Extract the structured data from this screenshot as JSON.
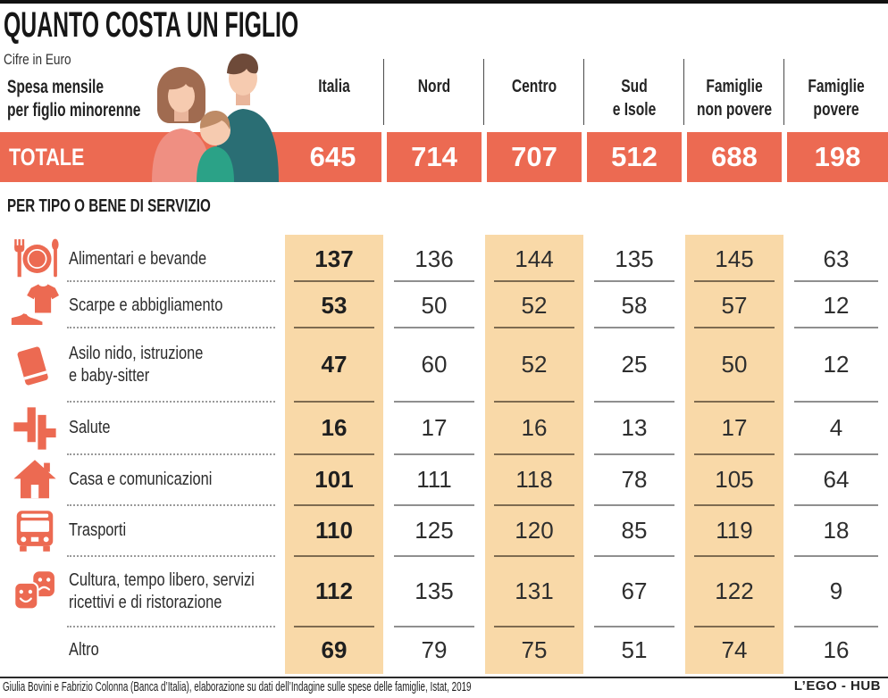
{
  "title": "QUANTO COSTA UN FIGLIO",
  "subtitle": "Cifre in Euro",
  "table": {
    "row_header_lines": [
      "Spesa mensile",
      "per figlio minorenne"
    ],
    "columns": [
      [
        "Italia"
      ],
      [
        "Nord"
      ],
      [
        "Centro"
      ],
      [
        "Sud",
        "e Isole"
      ],
      [
        "Famiglie",
        "non povere"
      ],
      [
        "Famiglie",
        "povere"
      ]
    ]
  },
  "totale": {
    "label": "TOTALE",
    "values": [
      "645",
      "714",
      "707",
      "512",
      "688",
      "198"
    ]
  },
  "section_title": "PER TIPO O BENE DI SERVIZIO",
  "highlight_columns": [
    0,
    2,
    4
  ],
  "rows": [
    {
      "icon": "restaurant-icon",
      "label_lines": [
        "Alimentari e bevande"
      ],
      "values": [
        137,
        136,
        144,
        135,
        145,
        63
      ]
    },
    {
      "icon": "clothing-icon",
      "label_lines": [
        "Scarpe e abbigliamento"
      ],
      "values": [
        53,
        50,
        52,
        58,
        57,
        12
      ]
    },
    {
      "icon": "education-icon",
      "label_lines": [
        "Asilo nido, istruzione",
        "e baby-sitter"
      ],
      "values": [
        47,
        60,
        52,
        25,
        50,
        12
      ]
    },
    {
      "icon": "health-icon",
      "label_lines": [
        "Salute"
      ],
      "values": [
        16,
        17,
        16,
        13,
        17,
        4
      ]
    },
    {
      "icon": "home-icon",
      "label_lines": [
        "Casa e comunicazioni"
      ],
      "values": [
        101,
        111,
        118,
        78,
        105,
        64
      ]
    },
    {
      "icon": "bus-icon",
      "label_lines": [
        "Trasporti"
      ],
      "values": [
        110,
        125,
        120,
        85,
        119,
        18
      ]
    },
    {
      "icon": "theater-masks-icon",
      "label_lines": [
        "Cultura, tempo libero, servizi",
        "ricettivi e di ristorazione"
      ],
      "values": [
        112,
        135,
        131,
        67,
        122,
        9
      ]
    },
    {
      "icon": null,
      "label_lines": [
        "Altro"
      ],
      "values": [
        69,
        79,
        75,
        51,
        74,
        16
      ]
    }
  ],
  "footer": {
    "source": "Giulia Bovini e Fabrizio Colonna (Banca d’Italia), elaborazione su dati dell’Indagine sulle spese delle famiglie, Istat, 2019",
    "credit": "L’EGO - HUB"
  },
  "colors": {
    "accent": "#EC6A52",
    "highlight": "#F9D9A8"
  },
  "chart_data": {
    "type": "table",
    "title": "QUANTO COSTA UN FIGLIO",
    "subtitle": "Cifre in Euro",
    "row_header": "Spesa mensile per figlio minorenne",
    "columns": [
      "Italia",
      "Nord",
      "Centro",
      "Sud e Isole",
      "Famiglie non povere",
      "Famiglie povere"
    ],
    "rows": [
      {
        "category": "TOTALE",
        "values": [
          645,
          714,
          707,
          512,
          688,
          198
        ]
      },
      {
        "category": "Alimentari e bevande",
        "values": [
          137,
          136,
          144,
          135,
          145,
          63
        ]
      },
      {
        "category": "Scarpe e abbigliamento",
        "values": [
          53,
          50,
          52,
          58,
          57,
          12
        ]
      },
      {
        "category": "Asilo nido, istruzione e baby-sitter",
        "values": [
          47,
          60,
          52,
          25,
          50,
          12
        ]
      },
      {
        "category": "Salute",
        "values": [
          16,
          17,
          16,
          13,
          17,
          4
        ]
      },
      {
        "category": "Casa e comunicazioni",
        "values": [
          101,
          111,
          118,
          78,
          105,
          64
        ]
      },
      {
        "category": "Trasporti",
        "values": [
          110,
          125,
          120,
          85,
          119,
          18
        ]
      },
      {
        "category": "Cultura, tempo libero, servizi ricettivi e di ristorazione",
        "values": [
          112,
          135,
          131,
          67,
          122,
          9
        ]
      },
      {
        "category": "Altro",
        "values": [
          69,
          79,
          75,
          51,
          74,
          16
        ]
      }
    ],
    "highlighted_columns": [
      "Italia",
      "Centro",
      "Famiglie non povere"
    ],
    "section_label": "PER TIPO O BENE DI SERVIZIO"
  }
}
